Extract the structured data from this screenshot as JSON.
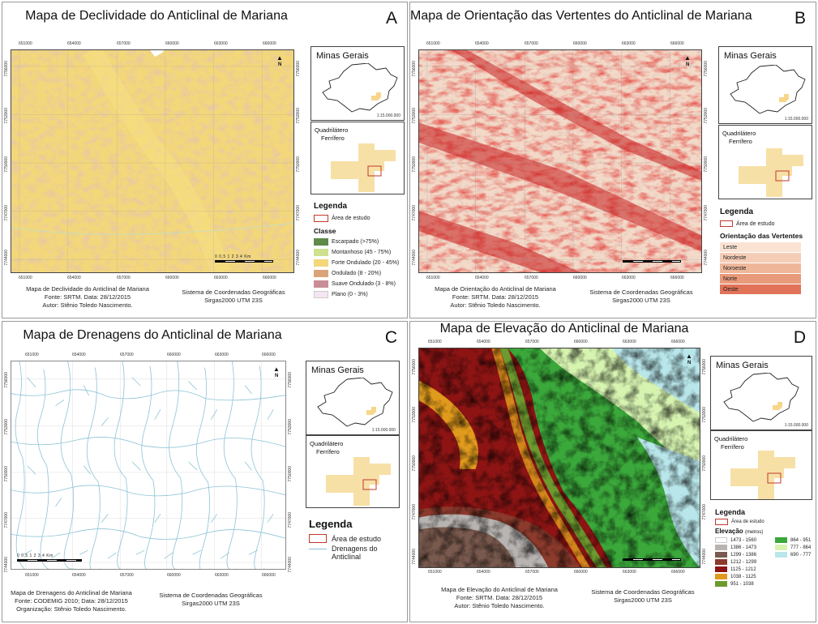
{
  "panels": {
    "a": {
      "title": "Mapa de Declividade do Anticlinal de Mariana",
      "letter": "A",
      "caption": [
        "Mapa de Declividade do Anticlinal de Mariana",
        "Fonte: SRTM. Data: 28/12/2015",
        "Autor: Stênio Toledo Nascimento."
      ],
      "coordsys": [
        "Sistema de Coordenadas Geográficas",
        "Sirgas2000 UTM 23S"
      ],
      "legend_heading": "Legenda",
      "legend_area": "Área de estudo",
      "legend_sub": "Classe",
      "classes": [
        {
          "label": "Escarpado (>75%)",
          "color": "#5e8a4a"
        },
        {
          "label": "Montanhoso (45 - 75%)",
          "color": "#cfe08f"
        },
        {
          "label": "Forte Ondulado (20 - 45%)",
          "color": "#f3d779"
        },
        {
          "label": "Ondulado (8 - 20%)",
          "color": "#d9a47a"
        },
        {
          "label": "Suave Ondulado (3 - 8%)",
          "color": "#c98d95"
        },
        {
          "label": "Plano (0 - 3%)",
          "color": "#f6e6f4"
        }
      ]
    },
    "b": {
      "title": "Mapa de Orientação das Vertentes do Anticlinal de Mariana",
      "letter": "B",
      "caption": [
        "Mapa de Orientação do Anticlinal de Mariana",
        "Fonte: SRTM. Data: 28/12/2015",
        "Autor: Stênio Toledo Nascimento."
      ],
      "coordsys": [
        "Sistema de Coordenadas Geográficas",
        "Sirgas2000 UTM 23S"
      ],
      "legend_heading": "Legenda",
      "legend_area": "Área de estudo",
      "legend_sub": "Orientação das Vertentes",
      "classes": [
        {
          "label": "Leste",
          "color": "#fbe3d4"
        },
        {
          "label": "Nordeste",
          "color": "#f5cdb6"
        },
        {
          "label": "Noroeste",
          "color": "#efb79a"
        },
        {
          "label": "Norte",
          "color": "#e99a7a"
        },
        {
          "label": "Oeste",
          "color": "#e17358"
        }
      ]
    },
    "c": {
      "title": "Mapa de Drenagens do Anticlinal de Mariana",
      "letter": "C",
      "caption": [
        "Mapa de Drenagens do Anticlinal de Mariana",
        "Fonte: CODEMIG 2010; Data: 28/12/2015",
        "Organização: Stênio Toledo Nascimento."
      ],
      "coordsys": [
        "Sistema de Coordenadas Geográficas",
        "Sirgas2000 UTM 23S"
      ],
      "legend_heading": "Legenda",
      "legend_area": "Área de estudo",
      "legend_drainage": [
        "Drenagens do",
        "Anticlinal"
      ]
    },
    "d": {
      "title": "Mapa de Elevação do Anticlinal de Mariana",
      "letter": "D",
      "caption": [
        "Mapa de Elevação do Anticlinal de Mariana",
        "Fonte: SRTM. Data: 28/12/2015",
        "Autor: Stênio Toledo Nascimento."
      ],
      "coordsys": [
        "Sistema de Coordenadas Geográficas",
        "Sirgas2000 UTM 23S"
      ],
      "legend_heading": "Legenda",
      "legend_area": "Área de estudo",
      "legend_sub": "Elevação",
      "legend_unit": "(metros)",
      "classes": [
        {
          "label": "1473 - 1560",
          "color": "#ffffff"
        },
        {
          "label": "1386 - 1473",
          "color": "#b8b4b2"
        },
        {
          "label": "1299 - 1386",
          "color": "#7a5a4e"
        },
        {
          "label": "1212 - 1299",
          "color": "#8b3a2c"
        },
        {
          "label": "1125 - 1212",
          "color": "#8e1414"
        },
        {
          "label": "1038 - 1125",
          "color": "#e09a1c"
        },
        {
          "label": "951 - 1038",
          "color": "#6c9a2e"
        },
        {
          "label": "864 - 951",
          "color": "#3aa83a"
        },
        {
          "label": "777 - 864",
          "color": "#d6f3b0"
        },
        {
          "label": "690 - 777",
          "color": "#b8e6ea"
        }
      ]
    }
  },
  "coords_x": [
    "651000",
    "654000",
    "657000",
    "660000",
    "663000",
    "666000"
  ],
  "coords_y": [
    "7744000",
    "7747000",
    "7750000",
    "7753000",
    "7756000"
  ],
  "inset": {
    "state_title": "Minas Gerais",
    "scale": "1:15.000.000",
    "qf_title": [
      "Quadrilátero",
      "Ferrífero"
    ]
  },
  "north_label": "N",
  "scale_label_a": "0 0,5 1   2   3   4 Km",
  "scale_label_c": "0 0,5 1     2     3     4 Km"
}
